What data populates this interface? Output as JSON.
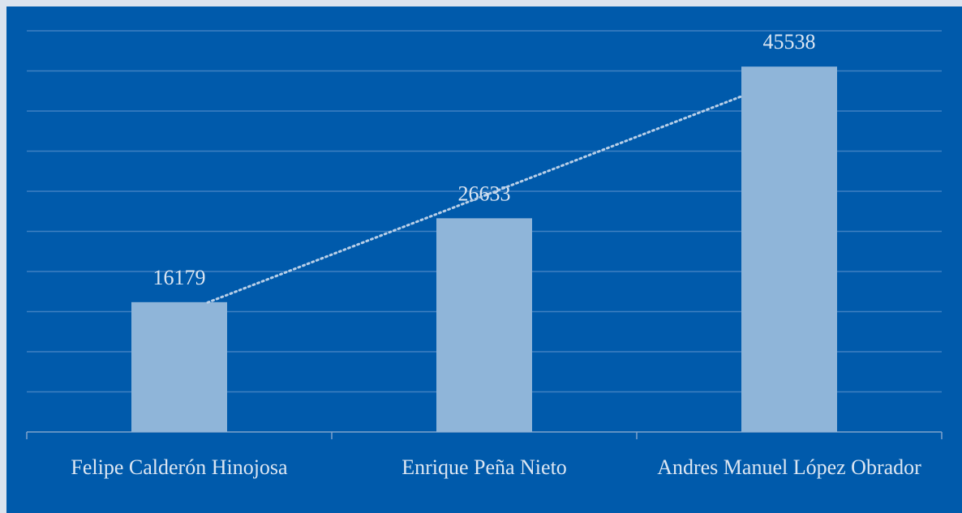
{
  "chart_data": {
    "type": "bar",
    "categories": [
      "Felipe Calderón Hinojosa",
      "Enrique Peña Nieto",
      "Andres Manuel López Obrador"
    ],
    "values": [
      16179,
      26633,
      45538
    ],
    "color": "#8fb5d9",
    "ylim": [
      0,
      50000
    ],
    "yticks": [
      0,
      5000,
      10000,
      15000,
      20000,
      25000,
      30000,
      35000,
      40000,
      45000,
      50000
    ],
    "grid": true,
    "trendline": "linear"
  }
}
